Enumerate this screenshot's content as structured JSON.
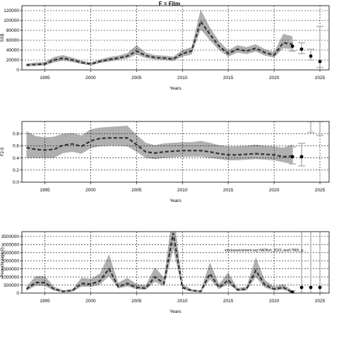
{
  "figure": {
    "main_title": "F = Flim",
    "watermark": "stockassessment.org HADfish_2023_test17865_g...",
    "colors": {
      "band": "#b0b0b0",
      "line": "#333333",
      "point": "#000000",
      "grid": "#000000",
      "ci": "#b8b8b8"
    }
  },
  "chart_data": [
    {
      "type": "line",
      "title": "F = Flim",
      "xlabel": "Years",
      "ylabel": "SSB",
      "xlim": [
        1992.5,
        2026
      ],
      "ylim": [
        0,
        130000
      ],
      "xticks": [
        1995,
        2000,
        2005,
        2010,
        2015,
        2020,
        2025
      ],
      "yticks": [
        0,
        20000,
        40000,
        60000,
        80000,
        100000,
        120000
      ],
      "grid": true,
      "x": [
        1993,
        1994,
        1995,
        1996,
        1997,
        1998,
        1999,
        2000,
        2001,
        2002,
        2003,
        2004,
        2005,
        2006,
        2007,
        2008,
        2009,
        2010,
        2011,
        2012,
        2013,
        2014,
        2015,
        2016,
        2017,
        2018,
        2019,
        2020,
        2021,
        2022
      ],
      "y": [
        10000,
        11000,
        12000,
        20000,
        24000,
        20000,
        15000,
        12000,
        17000,
        21000,
        24000,
        28000,
        38000,
        29000,
        25000,
        24000,
        22000,
        33000,
        38000,
        98000,
        72000,
        48000,
        33000,
        42000,
        38000,
        44000,
        35000,
        30000,
        55000,
        52000
      ],
      "lower": [
        7000,
        8000,
        9000,
        15000,
        19000,
        16000,
        12000,
        9000,
        14000,
        17000,
        20000,
        23000,
        31000,
        24000,
        21000,
        20000,
        18000,
        27000,
        31000,
        82000,
        60000,
        40000,
        27000,
        35000,
        32000,
        37000,
        29000,
        25000,
        44000,
        42000
      ],
      "upper": [
        13000,
        15000,
        16000,
        26000,
        30000,
        25000,
        19000,
        15000,
        21000,
        26000,
        29000,
        34000,
        50000,
        35000,
        30000,
        29000,
        27000,
        40000,
        46000,
        122000,
        86000,
        58000,
        40000,
        50000,
        46000,
        52000,
        42000,
        36000,
        73000,
        68000
      ],
      "forecast_x": [
        2022,
        2023,
        2024,
        2025
      ],
      "forecast_y": [
        48000,
        42000,
        28000,
        17000
      ],
      "forecast_lower": [
        38000,
        33000,
        20000,
        5000
      ],
      "forecast_upper": [
        60000,
        55000,
        42000,
        88000
      ]
    },
    {
      "type": "line",
      "xlabel": "Years",
      "ylabel": "F2-5",
      "xlim": [
        1992.5,
        2026
      ],
      "ylim": [
        0,
        1.0
      ],
      "xticks": [
        1995,
        2000,
        2005,
        2010,
        2015,
        2020,
        2025
      ],
      "yticks": [
        0.0,
        0.2,
        0.4,
        0.6,
        0.8
      ],
      "ytick_labels": [
        "0.0",
        "0.2",
        "0.4",
        "0.6",
        "0.8"
      ],
      "grid": true,
      "x": [
        1993,
        1994,
        1995,
        1996,
        1997,
        1998,
        1999,
        2000,
        2001,
        2002,
        2003,
        2004,
        2005,
        2006,
        2007,
        2008,
        2009,
        2010,
        2011,
        2012,
        2013,
        2014,
        2015,
        2016,
        2017,
        2018,
        2019,
        2020,
        2021,
        2022
      ],
      "y": [
        0.57,
        0.54,
        0.53,
        0.54,
        0.61,
        0.63,
        0.59,
        0.68,
        0.72,
        0.73,
        0.73,
        0.73,
        0.62,
        0.5,
        0.48,
        0.5,
        0.51,
        0.52,
        0.52,
        0.52,
        0.5,
        0.47,
        0.45,
        0.45,
        0.46,
        0.47,
        0.46,
        0.45,
        0.42,
        0.43
      ],
      "lower": [
        0.4,
        0.4,
        0.4,
        0.4,
        0.48,
        0.5,
        0.47,
        0.56,
        0.59,
        0.6,
        0.6,
        0.59,
        0.5,
        0.4,
        0.38,
        0.4,
        0.41,
        0.42,
        0.42,
        0.42,
        0.4,
        0.38,
        0.36,
        0.36,
        0.37,
        0.38,
        0.37,
        0.36,
        0.33,
        0.3
      ],
      "upper": [
        0.84,
        0.76,
        0.74,
        0.75,
        0.8,
        0.81,
        0.77,
        0.87,
        0.9,
        0.91,
        0.92,
        0.93,
        0.78,
        0.65,
        0.61,
        0.64,
        0.65,
        0.66,
        0.66,
        0.68,
        0.65,
        0.61,
        0.59,
        0.59,
        0.6,
        0.62,
        0.6,
        0.59,
        0.57,
        0.62
      ],
      "forecast_x": [
        2022,
        2023
      ],
      "forecast_y": [
        0.42,
        0.42
      ],
      "forecast_lower": [
        0.3,
        0.27
      ],
      "forecast_upper": [
        0.58,
        0.64
      ],
      "extra_ci": [
        {
          "x": 2024,
          "lower": 0.82,
          "upper": 1.0
        },
        {
          "x": 2025,
          "lower": 0.77,
          "upper": 1.0
        }
      ]
    },
    {
      "type": "line",
      "xlabel": "Years",
      "ylabel": "Recruits (age 0)",
      "xlim": [
        1992.5,
        2026
      ],
      "ylim": [
        0,
        3800000
      ],
      "xticks": [
        1995,
        2000,
        2005,
        2010,
        2015,
        2020,
        2025
      ],
      "yticks": [
        0,
        500000,
        1000000,
        1500000,
        2000000,
        2500000,
        3000000,
        3500000
      ],
      "ytick_labels": [
        "0",
        "500000",
        "1000000",
        "1500000",
        "2000000",
        "2500000",
        "3000000",
        "3500000"
      ],
      "grid": true,
      "x": [
        1993,
        1994,
        1995,
        1996,
        1997,
        1998,
        1999,
        2000,
        2001,
        2002,
        2003,
        2004,
        2005,
        2006,
        2007,
        2008,
        2009,
        2010,
        2011,
        2012,
        2013,
        2014,
        2015,
        2016,
        2017,
        2018,
        2019,
        2020,
        2021,
        2022
      ],
      "y": [
        250000,
        650000,
        650000,
        250000,
        100000,
        150000,
        600000,
        550000,
        750000,
        1500000,
        400000,
        600000,
        350000,
        300000,
        1000000,
        600000,
        3700000,
        350000,
        150000,
        100000,
        1200000,
        350000,
        800000,
        200000,
        250000,
        1400000,
        500000,
        250000,
        350000,
        50000
      ],
      "lower": [
        150000,
        450000,
        450000,
        150000,
        50000,
        90000,
        400000,
        380000,
        520000,
        1050000,
        280000,
        420000,
        240000,
        200000,
        700000,
        420000,
        2700000,
        240000,
        100000,
        60000,
        850000,
        240000,
        560000,
        130000,
        160000,
        980000,
        340000,
        160000,
        220000,
        0
      ],
      "upper": [
        400000,
        1050000,
        1050000,
        400000,
        180000,
        250000,
        950000,
        880000,
        1200000,
        2400000,
        640000,
        950000,
        560000,
        480000,
        1600000,
        960000,
        5200000,
        560000,
        240000,
        170000,
        1900000,
        560000,
        1280000,
        320000,
        400000,
        2200000,
        800000,
        400000,
        560000,
        150000
      ],
      "forecast_x": [
        2022,
        2023,
        2024,
        2025
      ],
      "forecast_y": [
        50000,
        350000,
        350000,
        350000
      ],
      "forecast_lower": [
        0,
        0,
        0,
        0
      ],
      "forecast_upper": [
        150000,
        4100000,
        4100000,
        4100000
      ]
    }
  ]
}
